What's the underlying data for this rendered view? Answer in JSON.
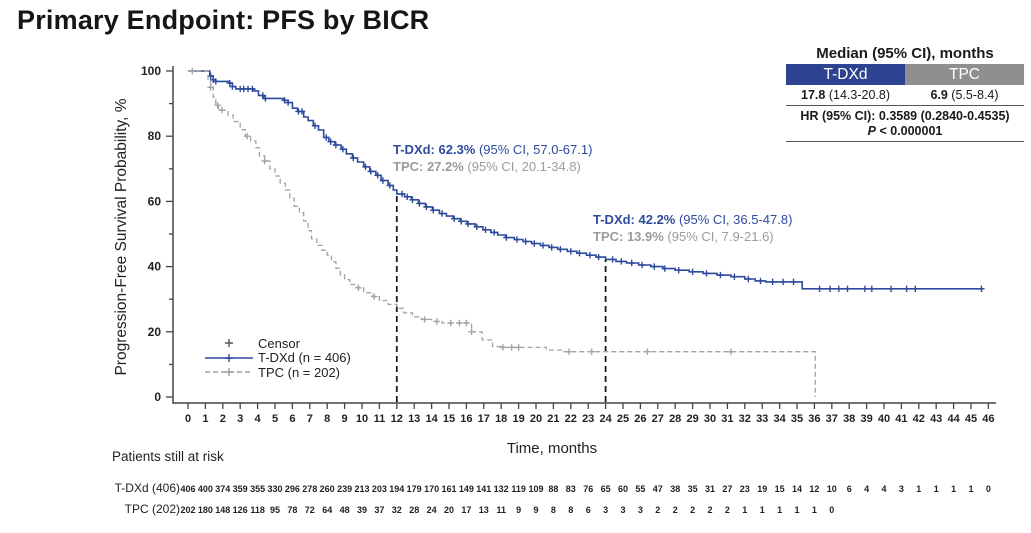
{
  "title": "Primary Endpoint: PFS by BICR",
  "stats_table": {
    "header": "Median (95% CI), months",
    "columns": [
      {
        "label": "T-DXd",
        "color": "#2d4390",
        "value_bold": "17.8",
        "value_rest": " (14.3-20.8)"
      },
      {
        "label": "TPC",
        "color": "#8f8f8f",
        "value_bold": "6.9",
        "value_rest": " (5.5-8.4)"
      }
    ],
    "hr_text": "HR (95% CI): 0.3589 (0.2840-0.4535)",
    "p_italic": "P",
    "p_rest": " < 0.000001"
  },
  "annotations": [
    {
      "lines": [
        {
          "bold": "T-DXd: 62.3%",
          "rest": " (95% CI, 57.0-67.1)"
        },
        {
          "bold": "TPC: 27.2%",
          "rest": " (95% CI, 20.1-34.8)"
        }
      ]
    },
    {
      "lines": [
        {
          "bold": "T-DXd: 42.2%",
          "rest": " (95% CI, 36.5-47.8)"
        },
        {
          "bold": "TPC: 13.9%",
          "rest": " (95% CI, 7.9-21.6)"
        }
      ]
    }
  ],
  "legend": {
    "items": [
      {
        "label": "Censor",
        "type": "censor",
        "color": "#555555"
      },
      {
        "label": "T-DXd (n = 406)",
        "type": "solid",
        "color": "#2e4a9d"
      },
      {
        "label": "TPC (n = 202)",
        "type": "dashed",
        "color": "#9b9b9b"
      }
    ]
  },
  "at_risk_title": "Patients still at risk",
  "chart_data": {
    "type": "line",
    "subtype": "kaplan-meier-step",
    "xlabel": "Time, months",
    "ylabel": "Progression-Free Survival Probability, %",
    "xlim": [
      0,
      46
    ],
    "ylim": [
      0,
      100
    ],
    "xtick_step": 1,
    "ytick_major": 20,
    "ytick_minor": 10,
    "grid": false,
    "reference_lines_x": [
      12,
      24
    ],
    "landmarks": [
      {
        "month": 12,
        "tdxd_pct": 62.3,
        "tpc_pct": 27.2
      },
      {
        "month": 24,
        "tdxd_pct": 42.2,
        "tpc_pct": 13.9
      }
    ],
    "medians": {
      "tdxd_months": 17.8,
      "tpc_months": 6.9
    },
    "series": [
      {
        "name": "T-DXd (n = 406)",
        "color": "#2e4a9d",
        "dashed": false,
        "width": 1.6,
        "steps": [
          [
            0,
            100
          ],
          [
            1.1,
            100
          ],
          [
            1.25,
            98.5
          ],
          [
            1.45,
            97.3
          ],
          [
            1.6,
            96.8
          ],
          [
            2.35,
            96.3
          ],
          [
            2.55,
            95.2
          ],
          [
            2.75,
            94.5
          ],
          [
            3.8,
            93.9
          ],
          [
            4.05,
            92.5
          ],
          [
            4.35,
            91.6
          ],
          [
            5.5,
            91.0
          ],
          [
            5.75,
            90.3
          ],
          [
            6.0,
            88.6
          ],
          [
            6.3,
            87.6
          ],
          [
            6.65,
            85.9
          ],
          [
            6.9,
            84.8
          ],
          [
            7.2,
            83.2
          ],
          [
            7.5,
            81.9
          ],
          [
            7.8,
            79.6
          ],
          [
            8.1,
            78.3
          ],
          [
            8.45,
            77.3
          ],
          [
            8.8,
            76.0
          ],
          [
            9.1,
            74.6
          ],
          [
            9.45,
            73.3
          ],
          [
            9.75,
            72.1
          ],
          [
            10.1,
            70.6
          ],
          [
            10.45,
            69.2
          ],
          [
            10.8,
            68.0
          ],
          [
            11.1,
            66.4
          ],
          [
            11.5,
            64.9
          ],
          [
            11.8,
            63.5
          ],
          [
            12.0,
            62.3
          ],
          [
            12.45,
            61.4
          ],
          [
            12.85,
            60.5
          ],
          [
            13.25,
            59.4
          ],
          [
            13.65,
            58.3
          ],
          [
            14.05,
            57.3
          ],
          [
            14.45,
            56.3
          ],
          [
            14.85,
            55.5
          ],
          [
            15.25,
            54.7
          ],
          [
            15.65,
            53.9
          ],
          [
            16.05,
            53.1
          ],
          [
            16.5,
            52.2
          ],
          [
            16.95,
            51.3
          ],
          [
            17.4,
            50.5
          ],
          [
            17.8,
            49.7
          ],
          [
            18.25,
            48.9
          ],
          [
            18.75,
            48.3
          ],
          [
            19.25,
            47.7
          ],
          [
            19.75,
            47.1
          ],
          [
            20.25,
            46.5
          ],
          [
            20.75,
            45.9
          ],
          [
            21.25,
            45.3
          ],
          [
            21.8,
            44.7
          ],
          [
            22.35,
            44.1
          ],
          [
            22.9,
            43.5
          ],
          [
            23.45,
            42.9
          ],
          [
            24.0,
            42.2
          ],
          [
            24.6,
            41.6
          ],
          [
            25.2,
            41.1
          ],
          [
            25.9,
            40.5
          ],
          [
            26.6,
            40.0
          ],
          [
            27.3,
            39.4
          ],
          [
            28.0,
            38.9
          ],
          [
            28.8,
            38.4
          ],
          [
            29.6,
            37.9
          ],
          [
            30.4,
            37.4
          ],
          [
            31.2,
            36.9
          ],
          [
            32.0,
            36.2
          ],
          [
            32.6,
            35.6
          ],
          [
            33.2,
            35.3
          ],
          [
            35.3,
            33.2
          ],
          [
            45.7,
            33.2
          ]
        ],
        "censor_months": [
          1.3,
          1.45,
          1.6,
          2.4,
          2.55,
          3.0,
          3.2,
          3.45,
          3.7,
          4.3,
          4.45,
          5.55,
          5.75,
          6.35,
          6.55,
          7.3,
          7.95,
          8.2,
          8.5,
          8.9,
          9.5,
          10.2,
          10.5,
          10.9,
          11.2,
          11.6,
          12.3,
          12.6,
          12.9,
          13.3,
          13.7,
          14.1,
          14.6,
          15.3,
          15.7,
          16.1,
          16.6,
          17.1,
          17.6,
          18.3,
          18.9,
          19.4,
          19.9,
          20.4,
          20.9,
          21.4,
          22.0,
          22.5,
          23.1,
          23.6,
          24.4,
          24.9,
          25.5,
          26.1,
          26.8,
          27.4,
          28.2,
          29.0,
          29.8,
          30.6,
          31.4,
          32.2,
          32.9,
          33.6,
          34.2,
          34.8,
          36.3,
          36.9,
          37.4,
          37.9,
          38.9,
          39.3,
          40.4,
          41.3,
          41.8,
          45.6
        ]
      },
      {
        "name": "TPC (n = 202)",
        "color": "#a3a3a3",
        "dashed": true,
        "width": 1.3,
        "steps": [
          [
            0,
            100
          ],
          [
            1.1,
            100
          ],
          [
            1.15,
            97.0
          ],
          [
            1.3,
            95.0
          ],
          [
            1.45,
            92.0
          ],
          [
            1.6,
            89.5
          ],
          [
            1.75,
            88.0
          ],
          [
            2.3,
            86.5
          ],
          [
            2.6,
            84.5
          ],
          [
            3.0,
            82.0
          ],
          [
            3.3,
            80.0
          ],
          [
            3.6,
            78.5
          ],
          [
            3.9,
            76.5
          ],
          [
            4.1,
            74.0
          ],
          [
            4.4,
            72.4
          ],
          [
            4.7,
            70.0
          ],
          [
            5.0,
            67.8
          ],
          [
            5.3,
            65.6
          ],
          [
            5.6,
            63.5
          ],
          [
            5.85,
            61.0
          ],
          [
            6.1,
            58.5
          ],
          [
            6.4,
            56.5
          ],
          [
            6.65,
            54.0
          ],
          [
            6.9,
            51.0
          ],
          [
            7.1,
            48.5
          ],
          [
            7.4,
            46.5
          ],
          [
            7.7,
            45.0
          ],
          [
            8.0,
            43.5
          ],
          [
            8.25,
            41.5
          ],
          [
            8.5,
            39.5
          ],
          [
            8.75,
            37.5
          ],
          [
            9.0,
            36.0
          ],
          [
            9.3,
            34.5
          ],
          [
            9.7,
            33.5
          ],
          [
            10.1,
            32.0
          ],
          [
            10.6,
            30.8
          ],
          [
            11.0,
            29.6
          ],
          [
            11.5,
            28.4
          ],
          [
            12.0,
            27.2
          ],
          [
            12.4,
            25.8
          ],
          [
            12.9,
            24.6
          ],
          [
            13.4,
            23.8
          ],
          [
            14.0,
            23.2
          ],
          [
            14.6,
            22.7
          ],
          [
            16.3,
            20.0
          ],
          [
            16.9,
            17.5
          ],
          [
            17.5,
            15.5
          ],
          [
            18.0,
            15.2
          ],
          [
            20.6,
            14.4
          ],
          [
            21.6,
            13.9
          ],
          [
            36.0,
            13.9
          ],
          [
            36.05,
            0
          ]
        ],
        "censor_months": [
          0.25,
          1.3,
          1.7,
          1.95,
          3.4,
          4.4,
          9.8,
          10.7,
          13.6,
          14.3,
          15.1,
          15.6,
          16.0,
          16.3,
          18.1,
          18.6,
          19.0,
          21.9,
          23.2,
          26.4,
          31.2
        ]
      }
    ],
    "at_risk": {
      "rows": [
        {
          "label": "T-DXd (406)",
          "values": [
            406,
            400,
            374,
            359,
            355,
            330,
            296,
            278,
            260,
            239,
            213,
            203,
            194,
            179,
            170,
            161,
            149,
            141,
            132,
            119,
            109,
            88,
            83,
            76,
            65,
            60,
            55,
            47,
            38,
            35,
            31,
            27,
            23,
            19,
            15,
            14,
            12,
            10,
            6,
            4,
            4,
            3,
            1,
            1,
            1,
            1,
            0
          ]
        },
        {
          "label": "TPC (202)",
          "values": [
            202,
            180,
            148,
            126,
            118,
            95,
            78,
            72,
            64,
            48,
            39,
            37,
            32,
            28,
            24,
            20,
            17,
            13,
            11,
            9,
            9,
            8,
            8,
            6,
            3,
            3,
            3,
            2,
            2,
            2,
            2,
            2,
            1,
            1,
            1,
            1,
            1,
            0
          ]
        }
      ]
    }
  }
}
